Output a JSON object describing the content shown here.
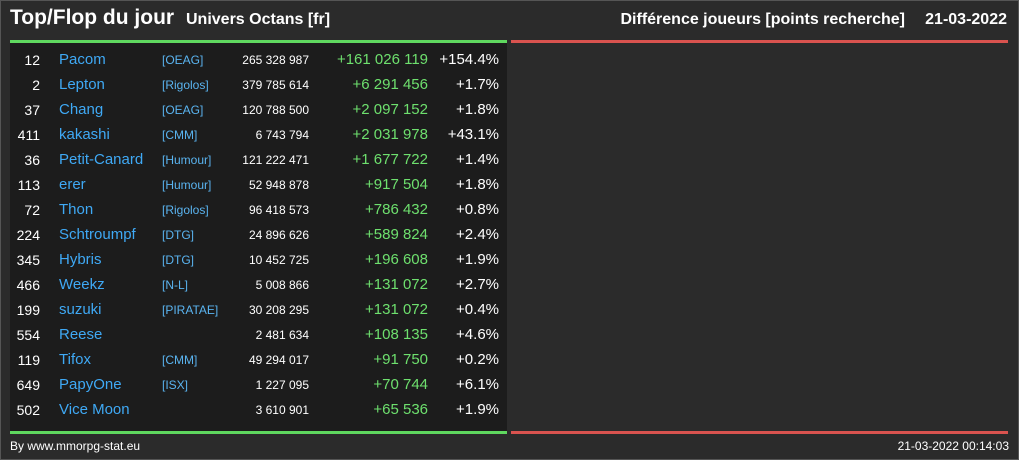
{
  "header": {
    "title": "Top/Flop du jour",
    "universe": "Univers Octans [fr]",
    "subtitle": "Différence joueurs [points recherche]",
    "date": "21-03-2022"
  },
  "top": [
    {
      "rank": "12",
      "name": "Pacom",
      "alliance": "[OEAG]",
      "points": "265 328 987",
      "diff": "+161 026 119",
      "pct": "+154.4%"
    },
    {
      "rank": "2",
      "name": "Lepton",
      "alliance": "[Rigolos]",
      "points": "379 785 614",
      "diff": "+6 291 456",
      "pct": "+1.7%"
    },
    {
      "rank": "37",
      "name": "Chang",
      "alliance": "[OEAG]",
      "points": "120 788 500",
      "diff": "+2 097 152",
      "pct": "+1.8%"
    },
    {
      "rank": "411",
      "name": "kakashi",
      "alliance": "[CMM]",
      "points": "6 743 794",
      "diff": "+2 031 978",
      "pct": "+43.1%"
    },
    {
      "rank": "36",
      "name": "Petit-Canard",
      "alliance": "[Humour]",
      "points": "121 222 471",
      "diff": "+1 677 722",
      "pct": "+1.4%"
    },
    {
      "rank": "113",
      "name": "erer",
      "alliance": "[Humour]",
      "points": "52 948 878",
      "diff": "+917 504",
      "pct": "+1.8%"
    },
    {
      "rank": "72",
      "name": "Thon",
      "alliance": "[Rigolos]",
      "points": "96 418 573",
      "diff": "+786 432",
      "pct": "+0.8%"
    },
    {
      "rank": "224",
      "name": "Schtroumpf",
      "alliance": "[DTG]",
      "points": "24 896 626",
      "diff": "+589 824",
      "pct": "+2.4%"
    },
    {
      "rank": "345",
      "name": "Hybris",
      "alliance": "[DTG]",
      "points": "10 452 725",
      "diff": "+196 608",
      "pct": "+1.9%"
    },
    {
      "rank": "466",
      "name": "Weekz",
      "alliance": "[N-L]",
      "points": "5 008 866",
      "diff": "+131 072",
      "pct": "+2.7%"
    },
    {
      "rank": "199",
      "name": "suzuki",
      "alliance": "[PIRATAE]",
      "points": "30 208 295",
      "diff": "+131 072",
      "pct": "+0.4%"
    },
    {
      "rank": "554",
      "name": "Reese",
      "alliance": "",
      "points": "2 481 634",
      "diff": "+108 135",
      "pct": "+4.6%"
    },
    {
      "rank": "119",
      "name": "Tifox",
      "alliance": "[CMM]",
      "points": "49 294 017",
      "diff": "+91 750",
      "pct": "+0.2%"
    },
    {
      "rank": "649",
      "name": "PapyOne",
      "alliance": "[ISX]",
      "points": "1 227 095",
      "diff": "+70 744",
      "pct": "+6.1%"
    },
    {
      "rank": "502",
      "name": "Vice Moon",
      "alliance": "",
      "points": "3 610 901",
      "diff": "+65 536",
      "pct": "+1.9%"
    }
  ],
  "footer": {
    "source": "By www.mmorpg-stat.eu",
    "timestamp": "21-03-2022 00:14:03"
  },
  "colors": {
    "top_accent": "#5fd85f",
    "flop_accent": "#d9534f",
    "name": "#3fa9f5",
    "gain": "#6ee06e"
  }
}
